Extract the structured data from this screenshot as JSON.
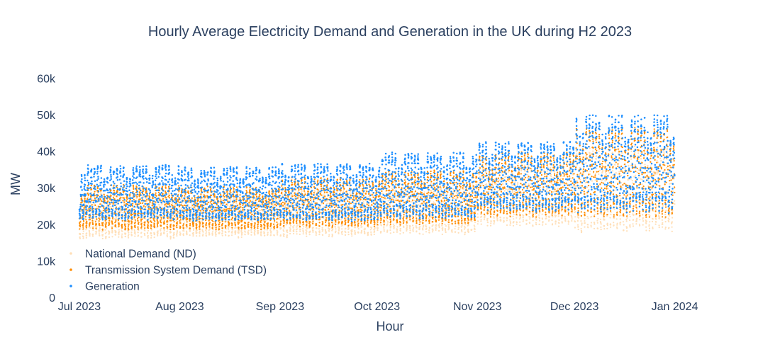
{
  "chart_data": {
    "type": "scatter",
    "title": "Hourly Average Electricity Demand and Generation in the UK during H2 2023",
    "xlabel": "Hour",
    "ylabel": "MW",
    "xlim": [
      "2023-06-24",
      "2024-01-16"
    ],
    "ylim": [
      0,
      62000
    ],
    "x_ticks": [
      {
        "label": "Jul 2023",
        "date": "2023-07-01"
      },
      {
        "label": "Aug 2023",
        "date": "2023-08-01"
      },
      {
        "label": "Sep 2023",
        "date": "2023-09-01"
      },
      {
        "label": "Oct 2023",
        "date": "2023-10-01"
      },
      {
        "label": "Nov 2023",
        "date": "2023-11-01"
      },
      {
        "label": "Dec 2023",
        "date": "2023-12-01"
      },
      {
        "label": "Jan 2024",
        "date": "2024-01-01"
      }
    ],
    "y_ticks": [
      {
        "label": "0",
        "value": 0
      },
      {
        "label": "10k",
        "value": 10000
      },
      {
        "label": "20k",
        "value": 20000
      },
      {
        "label": "30k",
        "value": 30000
      },
      {
        "label": "40k",
        "value": 40000
      },
      {
        "label": "50k",
        "value": 50000
      },
      {
        "label": "60k",
        "value": 60000
      }
    ],
    "grid": false,
    "legend": "bottom-left",
    "x_start": "2023-07-01",
    "x_end": "2023-12-31",
    "series": [
      {
        "name": "National Demand (ND)",
        "color": "#ffdfb8",
        "monthly_range": [
          {
            "month": "Jul 2023",
            "min": 15000,
            "max": 29000
          },
          {
            "month": "Aug 2023",
            "min": 15500,
            "max": 28000
          },
          {
            "month": "Sep 2023",
            "min": 15500,
            "max": 30000
          },
          {
            "month": "Oct 2023",
            "min": 16000,
            "max": 32000
          },
          {
            "month": "Nov 2023",
            "min": 18000,
            "max": 37000
          },
          {
            "month": "Dec 2023",
            "min": 16000,
            "max": 42000
          }
        ]
      },
      {
        "name": "Transmission System Demand (TSD)",
        "color": "#ff8c00",
        "monthly_range": [
          {
            "month": "Jul 2023",
            "min": 17500,
            "max": 31000
          },
          {
            "month": "Aug 2023",
            "min": 17500,
            "max": 30500
          },
          {
            "month": "Sep 2023",
            "min": 18000,
            "max": 33000
          },
          {
            "month": "Oct 2023",
            "min": 18500,
            "max": 35000
          },
          {
            "month": "Nov 2023",
            "min": 20500,
            "max": 40000
          },
          {
            "month": "Dec 2023",
            "min": 19500,
            "max": 47000
          }
        ]
      },
      {
        "name": "Generation",
        "color": "#1e8fff",
        "monthly_range": [
          {
            "month": "Jul 2023",
            "min": 20000,
            "max": 36500
          },
          {
            "month": "Aug 2023",
            "min": 19500,
            "max": 36000
          },
          {
            "month": "Sep 2023",
            "min": 19500,
            "max": 37000
          },
          {
            "month": "Oct 2023",
            "min": 20000,
            "max": 40000
          },
          {
            "month": "Nov 2023",
            "min": 22000,
            "max": 43000
          },
          {
            "month": "Dec 2023",
            "min": 21000,
            "max": 50500
          }
        ]
      }
    ]
  }
}
